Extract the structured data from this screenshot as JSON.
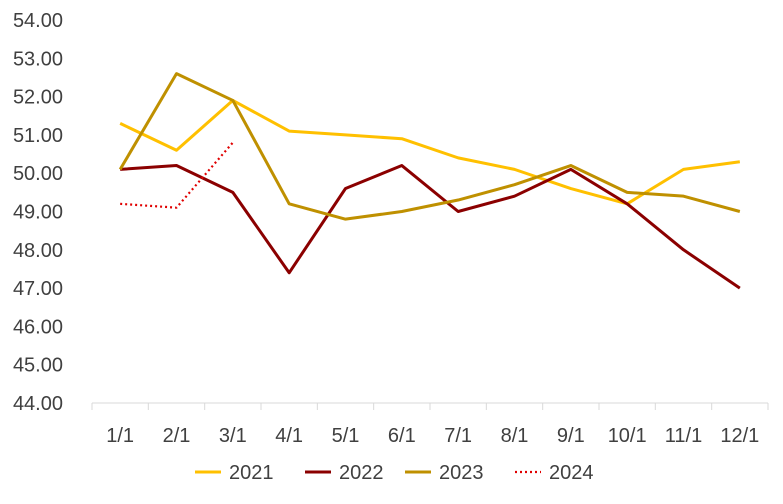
{
  "chart_data": {
    "type": "line",
    "title": "",
    "xlabel": "",
    "ylabel": "",
    "categories": [
      "1/1",
      "2/1",
      "3/1",
      "4/1",
      "5/1",
      "6/1",
      "7/1",
      "8/1",
      "9/1",
      "10/1",
      "11/1",
      "12/1"
    ],
    "ylim": [
      44.0,
      54.0
    ],
    "y_ticks": [
      "44.00",
      "45.00",
      "46.00",
      "47.00",
      "48.00",
      "49.00",
      "50.00",
      "51.00",
      "52.00",
      "53.00",
      "54.00"
    ],
    "grid": false,
    "legend_position": "bottom",
    "series": [
      {
        "name": "2021",
        "color": "#FFC000",
        "dash": "solid",
        "values": [
          51.3,
          50.6,
          51.9,
          51.1,
          51.0,
          50.9,
          50.4,
          50.1,
          49.6,
          49.2,
          50.1,
          50.3
        ]
      },
      {
        "name": "2022",
        "color": "#8B0000",
        "dash": "solid",
        "values": [
          50.1,
          50.2,
          49.5,
          47.4,
          49.6,
          50.2,
          49.0,
          49.4,
          50.1,
          49.2,
          48.0,
          47.0
        ]
      },
      {
        "name": "2023",
        "color": "#BF9000",
        "dash": "solid",
        "values": [
          50.1,
          52.6,
          51.9,
          49.2,
          48.8,
          49.0,
          49.3,
          49.7,
          50.2,
          49.5,
          49.4,
          49.0
        ]
      },
      {
        "name": "2024",
        "color": "#E00000",
        "dash": "dotted",
        "values": [
          49.2,
          49.1,
          50.8,
          null,
          null,
          null,
          null,
          null,
          null,
          null,
          null,
          null
        ]
      }
    ]
  }
}
